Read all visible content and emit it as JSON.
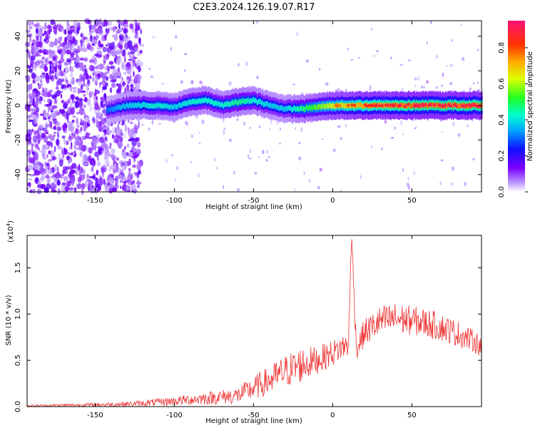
{
  "title": "C2E3.2024.126.19.07.R17",
  "chart_data": [
    {
      "type": "heatmap",
      "xlabel": "Height of straight line (km)",
      "ylabel": "Frequency (Hz)",
      "xlim": [
        -193,
        94
      ],
      "ylim": [
        -50,
        49
      ],
      "x_ticks": [
        -150,
        -100,
        -50,
        0,
        50
      ],
      "y_ticks": [
        -40,
        -20,
        0,
        20,
        40
      ],
      "colorbar": {
        "label": "Normalized spectral amplitude",
        "ticks": [
          "0.0",
          "0.2",
          "0.4",
          "0.6",
          "0.8"
        ],
        "range": [
          0,
          0.95
        ]
      },
      "ridge": {
        "x": [
          -143,
          -130,
          -110,
          -100,
          -90,
          -80,
          -70,
          -60,
          -50,
          -40,
          -30,
          -20,
          -10,
          0,
          20,
          50,
          94
        ],
        "freq": [
          -3,
          0,
          0,
          -1,
          2,
          3,
          0,
          2,
          3,
          0,
          -2,
          -2,
          -1,
          0,
          0,
          0,
          0
        ],
        "peak_amplitude": [
          0.35,
          0.45,
          0.5,
          0.45,
          0.5,
          0.5,
          0.5,
          0.55,
          0.5,
          0.45,
          0.45,
          0.55,
          0.65,
          0.75,
          0.85,
          0.9,
          0.9
        ]
      }
    },
    {
      "type": "line",
      "xlabel": "Height of straight line (km)",
      "ylabel": "SNR (10 * v/v)",
      "y_exponent_label": "(x10",
      "y_exponent": "4",
      "y_exponent_close": ")",
      "xlim": [
        -193,
        94
      ],
      "ylim": [
        0,
        1.85
      ],
      "x_ticks": [
        -150,
        -100,
        -50,
        0,
        50
      ],
      "y_ticks": [
        "0.0",
        "0.5",
        "1.0",
        "1.5"
      ],
      "series": [
        {
          "color": "#ee3333",
          "x": [
            -193,
            -150,
            -125,
            -100,
            -80,
            -60,
            -50,
            -40,
            -30,
            -20,
            -10,
            0,
            10,
            12,
            15,
            20,
            30,
            40,
            50,
            60,
            70,
            80,
            90,
            94
          ],
          "y": [
            0.01,
            0.02,
            0.03,
            0.06,
            0.09,
            0.12,
            0.2,
            0.28,
            0.38,
            0.45,
            0.5,
            0.58,
            0.68,
            1.85,
            0.62,
            0.8,
            0.92,
            0.95,
            0.93,
            0.9,
            0.85,
            0.78,
            0.7,
            0.65
          ],
          "noise": [
            0.01,
            0.02,
            0.03,
            0.05,
            0.07,
            0.09,
            0.13,
            0.16,
            0.18,
            0.2,
            0.15,
            0.14,
            0.14,
            0.14,
            0.12,
            0.15,
            0.17,
            0.18,
            0.16,
            0.16,
            0.15,
            0.14,
            0.12,
            0.12
          ]
        }
      ]
    }
  ]
}
